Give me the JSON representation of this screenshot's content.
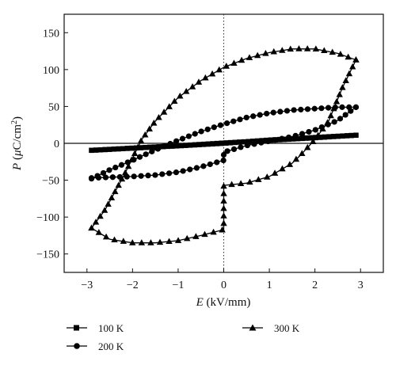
{
  "chart_data": {
    "type": "scatter",
    "xlabel": {
      "symbol": "E",
      "unit": " (kV/mm)"
    },
    "ylabel": {
      "symbol": "P",
      "unit_open": " (",
      "unit_mu": "μ",
      "unit_rest": "C/cm",
      "unit_sup": "2",
      "unit_close": ")"
    },
    "xlim": [
      -3.5,
      3.5
    ],
    "ylim": [
      -175,
      175
    ],
    "xticks": [
      -3,
      -2,
      -1,
      0,
      1,
      2,
      3
    ],
    "xtick_labels": [
      "−3",
      "−2",
      "−1",
      "0",
      "1",
      "2",
      "3"
    ],
    "yticks": [
      -150,
      -100,
      -50,
      0,
      50,
      100,
      150
    ],
    "ytick_labels": [
      "−150",
      "−100",
      "−50",
      "0",
      "50",
      "100",
      "150"
    ],
    "reference_lines": {
      "horizontal_at_y": 0,
      "vertical_dotted_at_x": 0
    },
    "legend_placement": "bottom",
    "series": [
      {
        "name": "100 K",
        "marker": "square",
        "color": "#000000",
        "upper": {
          "x": [
            -2.9,
            -2.0,
            -1.0,
            0.0,
            1.0,
            2.0,
            2.9
          ],
          "y": [
            -9.5,
            -6.5,
            -3.3,
            0.5,
            4.0,
            7.5,
            11.0
          ]
        },
        "lower": {
          "x": [
            2.9,
            2.0,
            1.0,
            0.0,
            -1.0,
            -2.0,
            -2.9
          ],
          "y": [
            11.0,
            8.0,
            4.5,
            0.0,
            -3.5,
            -6.5,
            -9.5
          ]
        }
      },
      {
        "name": "200 K",
        "marker": "circle",
        "color": "#000000",
        "upper": {
          "x": [
            -2.9,
            -2.5,
            -2.0,
            -1.5,
            -1.0,
            -0.5,
            0.0,
            0.5,
            1.0,
            1.5,
            2.0,
            2.5,
            2.9
          ],
          "y": [
            -48,
            -36,
            -23,
            -9,
            4,
            16,
            26,
            35,
            41,
            45,
            47,
            49,
            49
          ]
        },
        "lower": {
          "x": [
            2.9,
            2.5,
            2.0,
            1.5,
            1.0,
            0.5,
            0.0,
            0.0,
            -0.5,
            -1.0,
            -1.5,
            -2.0,
            -2.5,
            -2.9
          ],
          "y": [
            49,
            31,
            18,
            9,
            3,
            -3,
            -12,
            -23,
            -32,
            -39,
            -43,
            -45,
            -46,
            -47
          ]
        }
      },
      {
        "name": "300 K",
        "marker": "triangle",
        "color": "#000000",
        "upper": {
          "x": [
            -2.9,
            -2.6,
            -2.2,
            -2.0,
            -1.8,
            -1.5,
            -1.0,
            -0.5,
            0.0,
            0.5,
            1.0,
            1.5,
            2.0,
            2.5,
            2.9
          ],
          "y": [
            -115,
            -90,
            -45,
            -20,
            5,
            30,
            62,
            85,
            103,
            115,
            123,
            128,
            128,
            122,
            113
          ]
        },
        "lower": {
          "x": [
            2.9,
            2.6,
            2.3,
            2.0,
            1.7,
            1.5,
            1.0,
            0.5,
            0.0,
            0.0,
            -0.5,
            -1.0,
            -1.5,
            -2.0,
            -2.5,
            -2.9
          ],
          "y": [
            113,
            75,
            30,
            5,
            -15,
            -27,
            -45,
            -54,
            -57,
            -117,
            -125,
            -132,
            -135,
            -135,
            -130,
            -115
          ]
        }
      }
    ]
  }
}
